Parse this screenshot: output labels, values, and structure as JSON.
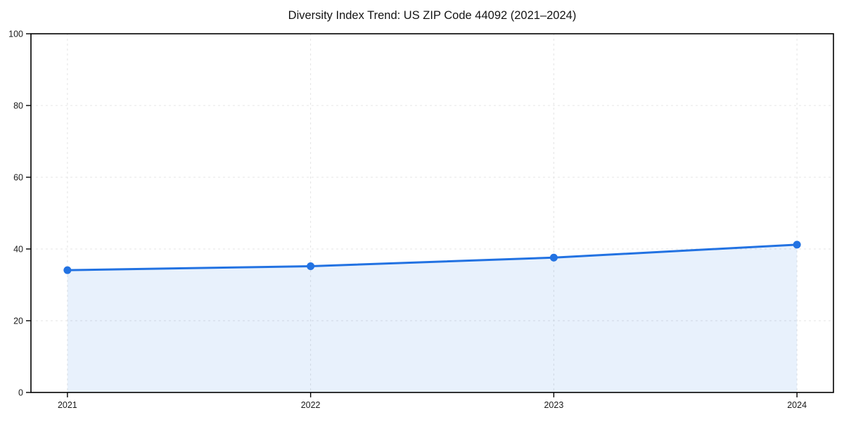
{
  "chart_data": {
    "type": "line",
    "title": "Diversity Index Trend: US ZIP Code 44092 (2021–2024)",
    "x": [
      2021,
      2022,
      2023,
      2024
    ],
    "xticks": [
      "2021",
      "2022",
      "2023",
      "2024"
    ],
    "series": [
      {
        "name": "Diversity Index",
        "values": [
          34.1,
          35.2,
          37.6,
          41.2
        ]
      }
    ],
    "xlabel": "",
    "ylabel": "",
    "ylim": [
      0,
      100
    ],
    "xlim": [
      2020.85,
      2024.15
    ],
    "yticks": [
      0,
      20,
      40,
      60,
      80,
      100
    ],
    "grid": "dashed",
    "legend": "none",
    "area_fill": true,
    "markers": true,
    "colors": {
      "line": "#2272e2",
      "area": "rgba(34,114,226,0.10)",
      "grid": "#e4e4e4",
      "axis": "#000000",
      "tick_label": "#1a1a1a",
      "background": "#ffffff"
    }
  }
}
